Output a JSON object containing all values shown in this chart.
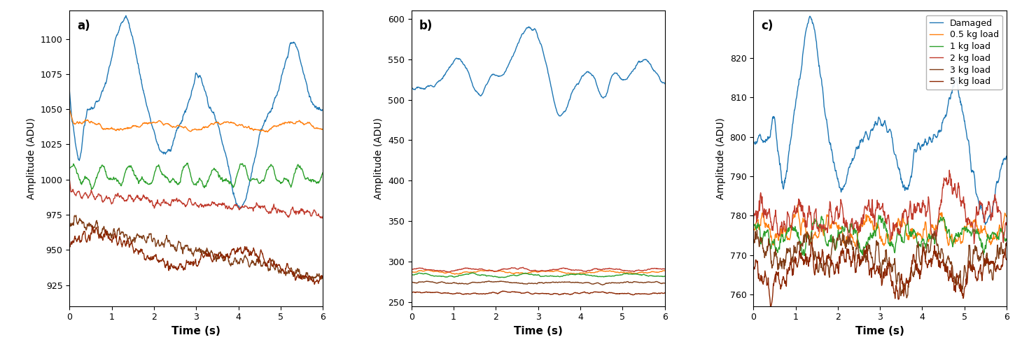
{
  "colors": {
    "damaged": "#1f77b4",
    "load_0_5": "#ff7f0e",
    "load_1": "#2ca02c",
    "load_2": "#c0392b",
    "load_3": "#7f3d17",
    "load_5": "#8B2500"
  },
  "legend_labels": [
    "Damaged",
    "0.5 kg load",
    "1 kg load",
    "2 kg load",
    "3 kg load",
    "5 kg load"
  ],
  "xlabel": "Time (s)",
  "ylabel": "Amplitude (ADU)",
  "subplot_labels": [
    "a)",
    "b)",
    "c)"
  ],
  "xlim": [
    0,
    6
  ],
  "panel_a": {
    "ylim": [
      910,
      1120
    ],
    "yticks": [
      925,
      950,
      975,
      1000,
      1025,
      1050,
      1075,
      1100
    ]
  },
  "panel_b": {
    "ylim": [
      245,
      610
    ],
    "yticks": [
      250,
      300,
      350,
      400,
      450,
      500,
      550,
      600
    ]
  },
  "panel_c": {
    "ylim": [
      757,
      832
    ],
    "yticks": [
      760,
      770,
      780,
      790,
      800,
      810,
      820
    ]
  },
  "figsize": [
    14.6,
    5.09
  ],
  "dpi": 100,
  "linewidth": 1.0
}
